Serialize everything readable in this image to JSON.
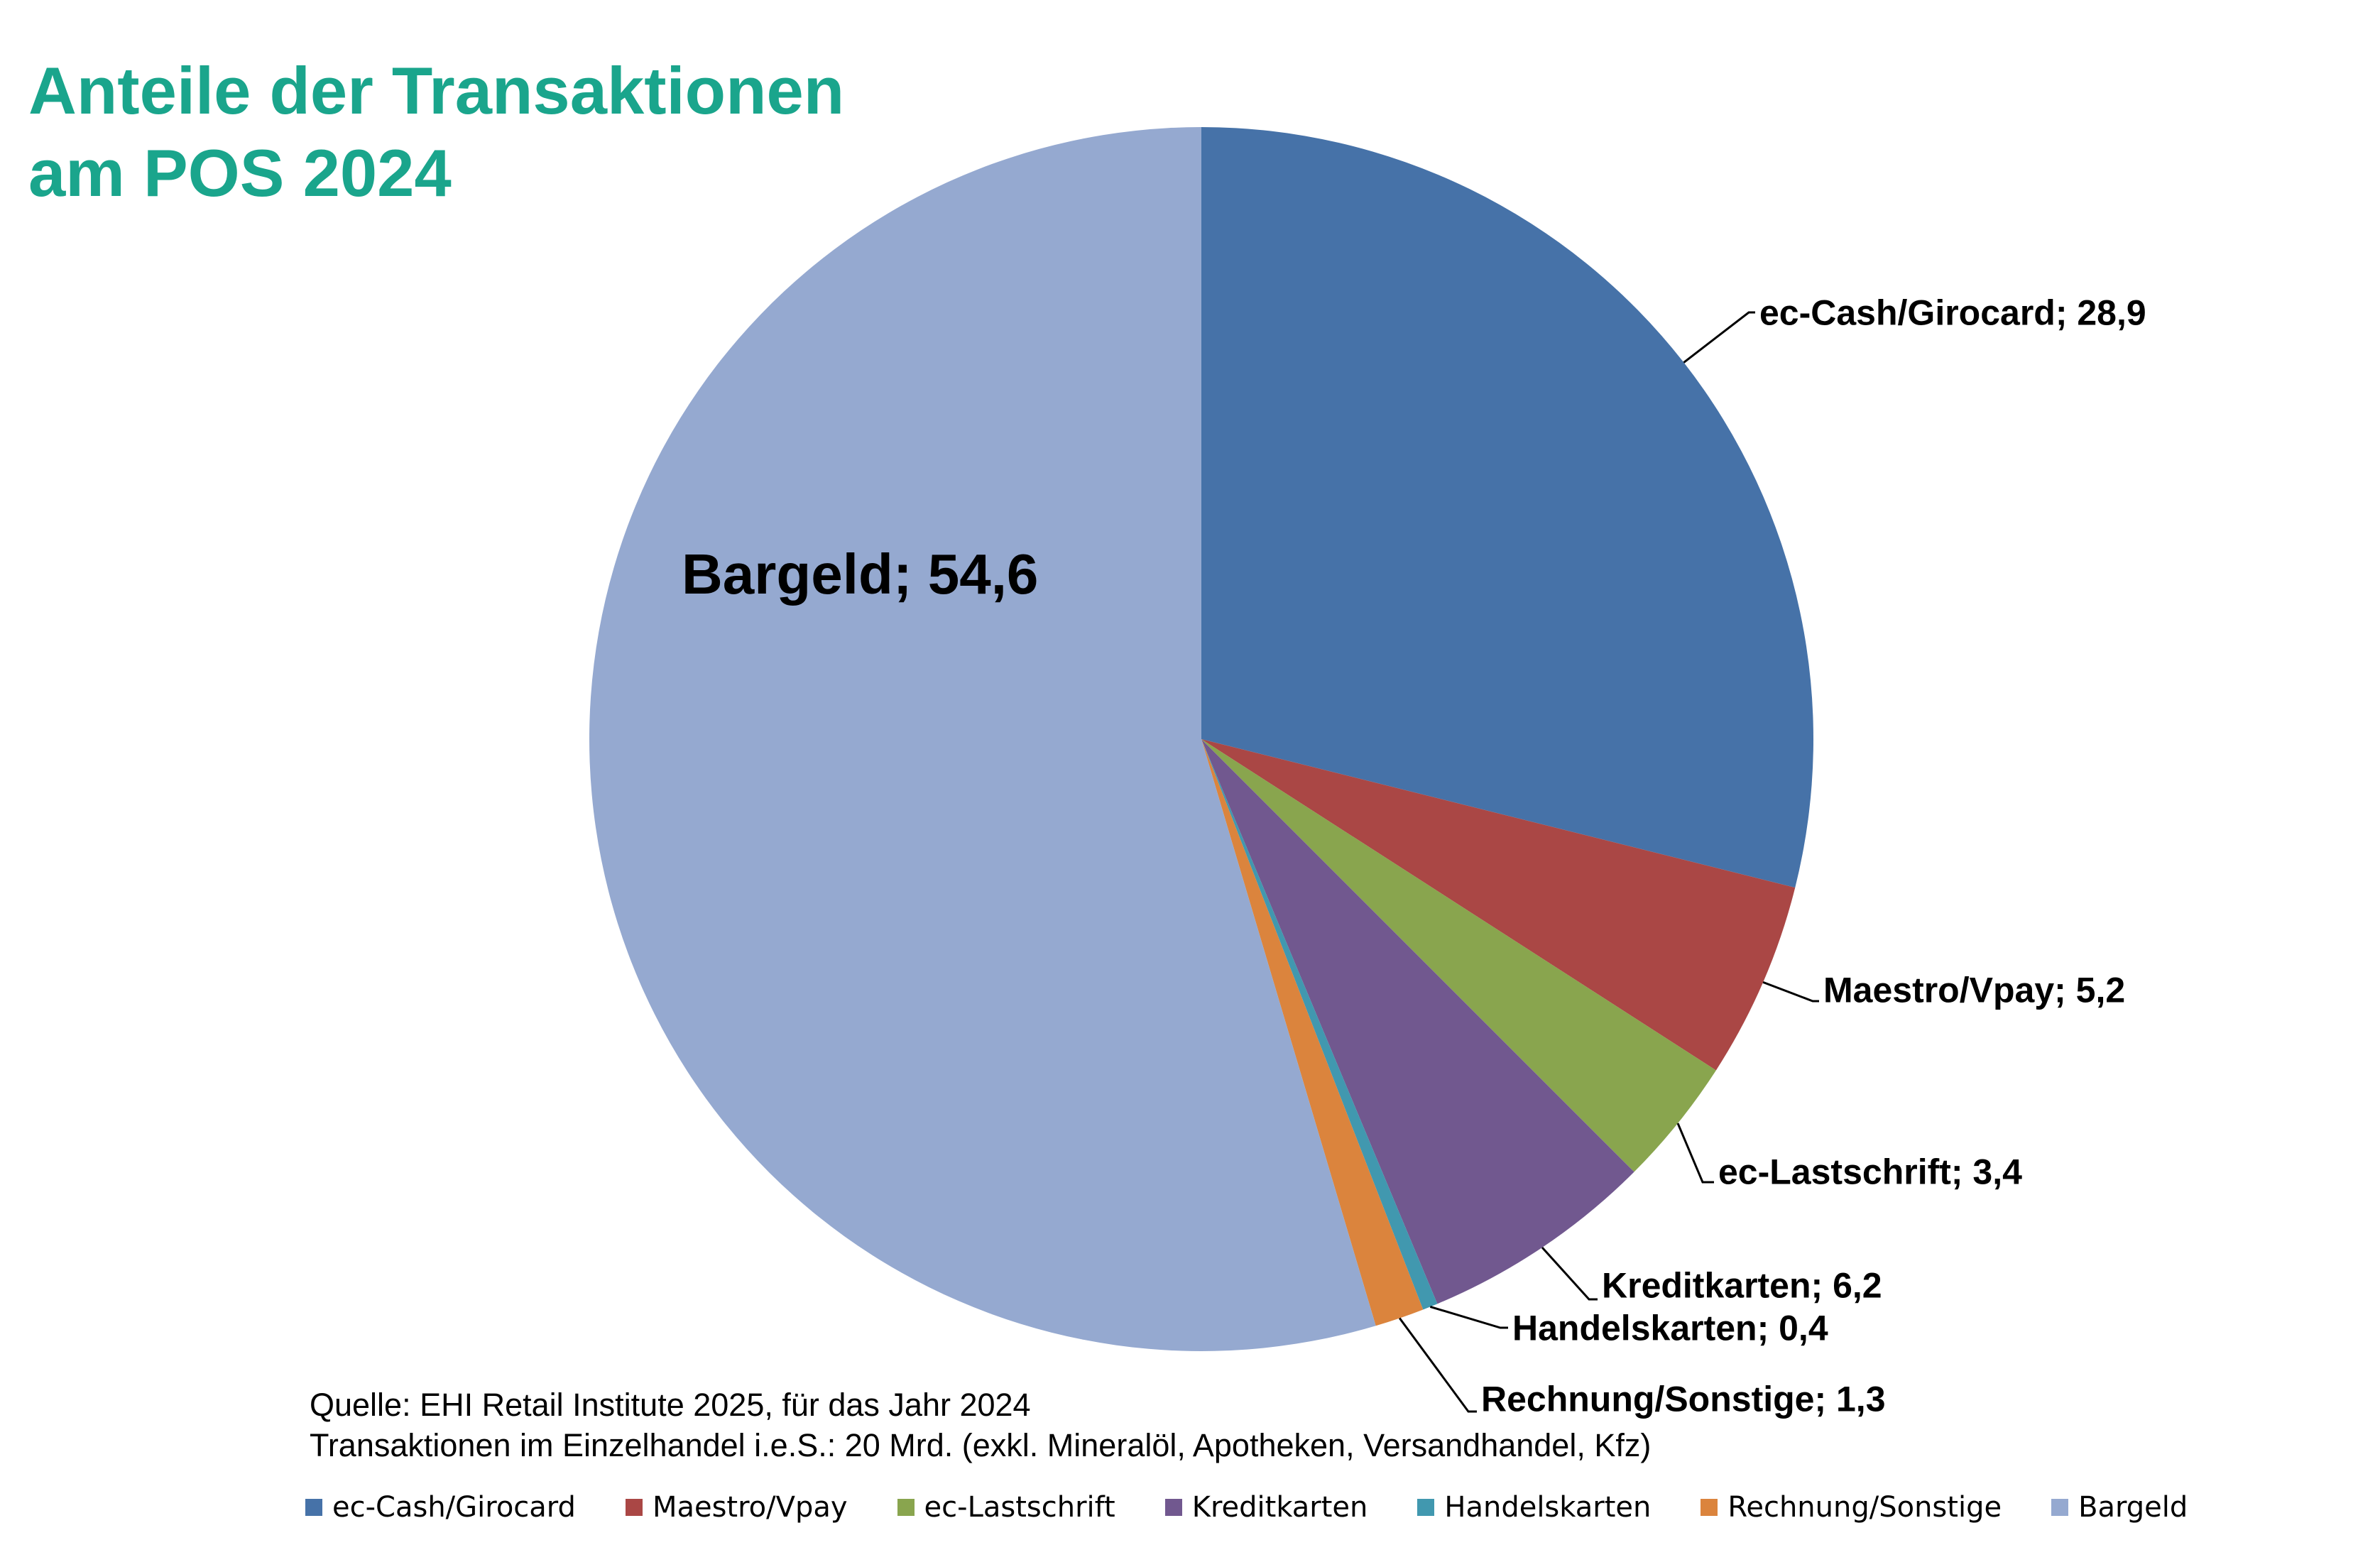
{
  "title_line1": "Anteile der Transaktionen",
  "title_line2": "am POS 2024",
  "source_line1": "Quelle: EHI Retail Institute 2025, für das Jahr 2024",
  "source_line2": "Transaktionen im Einzelhandel i.e.S.: 20 Mrd. (exkl. Mineralöl, Apotheken, Versandhandel, Kfz)",
  "chart_data": {
    "type": "pie",
    "title": "Anteile der Transaktionen am POS 2024",
    "legend_position": "bottom",
    "slices": [
      {
        "name": "ec-Cash/Girocard",
        "value": 28.9,
        "label": "ec-Cash/Girocard; 28,9",
        "color": "#4672a8"
      },
      {
        "name": "Maestro/Vpay",
        "value": 5.2,
        "label": "Maestro/Vpay; 5,2",
        "color": "#aa4745"
      },
      {
        "name": "ec-Lastschrift",
        "value": 3.4,
        "label": "ec-Lastschrift; 3,4",
        "color": "#89a54e"
      },
      {
        "name": "Kreditkarten",
        "value": 6.2,
        "label": "Kreditkarten; 6,2",
        "color": "#71588f"
      },
      {
        "name": "Handelskarten",
        "value": 0.4,
        "label": "Handelskarten; 0,4",
        "color": "#4198af"
      },
      {
        "name": "Rechnung/Sonstige",
        "value": 1.3,
        "label": "Rechnung/Sonstige; 1,3",
        "color": "#db843d"
      },
      {
        "name": "Bargeld",
        "value": 54.6,
        "label": "Bargeld; 54,6",
        "color": "#95a9d0"
      }
    ]
  }
}
